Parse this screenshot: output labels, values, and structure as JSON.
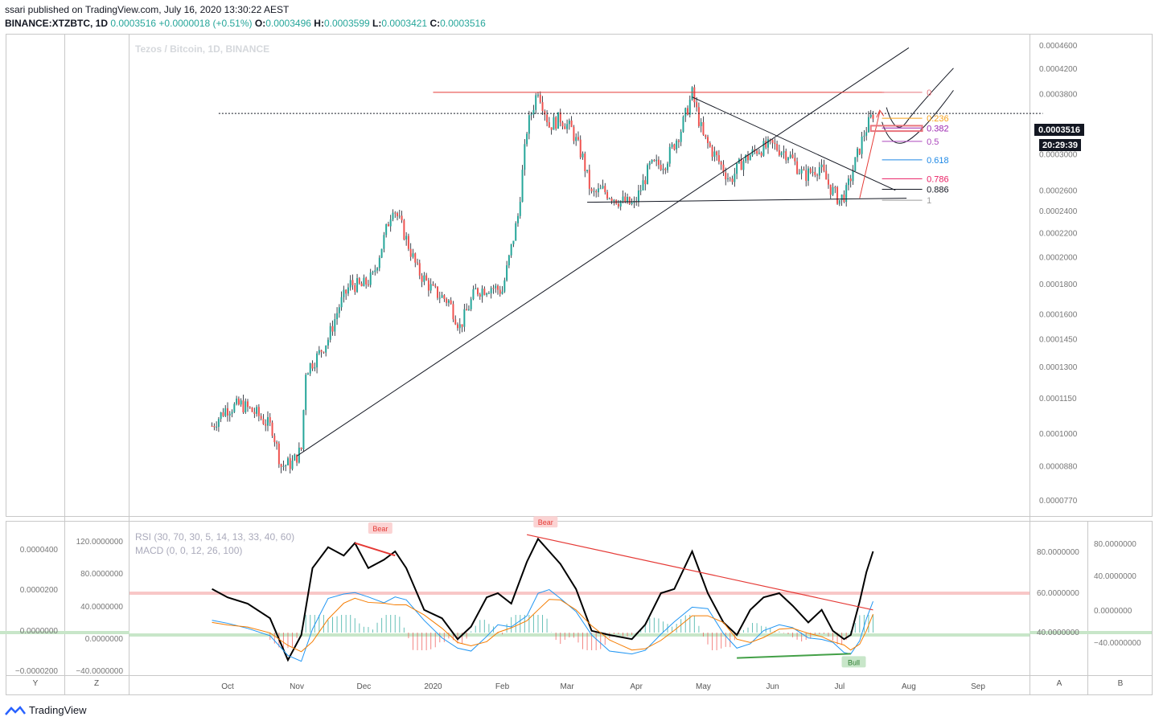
{
  "header": {
    "published": "ssari published on TradingView.com, July 16, 2020 13:30:22 AEST",
    "symbol": "BINANCE:XTZBTC, 1D",
    "last": "0.0003516",
    "change": "+0.0000018 (+0.51%)",
    "o_label": "O:",
    "o": "0.0003496",
    "h_label": "H:",
    "h": "0.0003599",
    "l_label": "L:",
    "l": "0.0003421",
    "c_label": "C:",
    "c": "0.0003516"
  },
  "watermark": "Tezos / Bitcoin, 1D, BINANCE",
  "price_axis": {
    "labels": [
      "0.0004600",
      "0.0004200",
      "0.0003800",
      "0.0003000",
      "0.0002600",
      "0.0002400",
      "0.0002200",
      "0.0002000",
      "0.0001800",
      "0.0001600",
      "0.0001450",
      "0.0001300",
      "0.0001150",
      "0.0001000",
      "0.0000880",
      "0.0000770"
    ],
    "last_price": "0.0003516",
    "countdown": "20:29:39"
  },
  "time_axis": [
    "Oct",
    "Nov",
    "Dec",
    "2020",
    "Feb",
    "Mar",
    "Apr",
    "May",
    "Jun",
    "Jul",
    "Aug",
    "Sep"
  ],
  "fib_levels": [
    {
      "label": "0",
      "color": "#e8747c"
    },
    {
      "label": "0.236",
      "color": "#f7a21b"
    },
    {
      "label": "0.382",
      "color": "#9c27b0"
    },
    {
      "label": "0.5",
      "color": "#ab47bc"
    },
    {
      "label": "0.618",
      "color": "#1e88e5"
    },
    {
      "label": "0.786",
      "color": "#e91e63"
    },
    {
      "label": "0.886",
      "color": "#131722"
    },
    {
      "label": "1",
      "color": "#9e9e9e"
    }
  ],
  "indicators": {
    "rsi_label": "RSI (30, 70, 30, 5, 14, 13, 33, 40, 60)",
    "macd_label": "MACD (0, 0, 12, 26, 100)",
    "left_axis": [
      "0.0000400",
      "0.0000200",
      "0.0000000",
      "−0.0000200"
    ],
    "mid_axis": [
      "120.0000000",
      "80.0000000",
      "40.0000000",
      "0.0000000",
      "−40.0000000"
    ],
    "right_axis": [
      "80.0000000",
      "60.0000000",
      "40.0000000"
    ],
    "far_axis": [
      "80.0000000",
      "40.0000000",
      "0.0000000",
      "−40.0000000"
    ],
    "bear_label": "Bear",
    "bull_label": "Bull"
  },
  "axis_buttons": {
    "y": "Y",
    "z": "Z",
    "a": "A",
    "b": "B"
  },
  "footer": {
    "brand": "TradingView"
  },
  "colors": {
    "up": "#26a69a",
    "down": "#ef5350",
    "fib_red": "#e53935",
    "rsi_line": "#000000",
    "macd_blue": "#2196f3",
    "signal_orange": "#f57c00"
  },
  "chart_data": [
    {
      "type": "candlestick",
      "title": "Tezos / Bitcoin, 1D, BINANCE",
      "series_name": "BINANCE:XTZBTC",
      "scale": "log",
      "ylim": [
        7.2e-05,
        0.00048
      ],
      "x_labels": [
        "Oct",
        "Nov",
        "Dec",
        "2020",
        "Feb",
        "Mar",
        "Apr",
        "May",
        "Jun",
        "Jul",
        "Aug",
        "Sep"
      ],
      "close_path": [
        [
          "2019-09-24",
          0.000103
        ],
        [
          "2019-09-30",
          0.00011
        ],
        [
          "2019-10-07",
          0.000112
        ],
        [
          "2019-10-14",
          0.000108
        ],
        [
          "2019-10-21",
          0.000102
        ],
        [
          "2019-10-25",
          8.8e-05
        ],
        [
          "2019-10-30",
          8.9e-05
        ],
        [
          "2019-11-03",
          9.4e-05
        ],
        [
          "2019-11-05",
          0.000128
        ],
        [
          "2019-11-10",
          0.000135
        ],
        [
          "2019-11-15",
          0.000145
        ],
        [
          "2019-11-20",
          0.000165
        ],
        [
          "2019-11-25",
          0.00018
        ],
        [
          "2019-11-30",
          0.000178
        ],
        [
          "2019-12-05",
          0.000185
        ],
        [
          "2019-12-10",
          0.000215
        ],
        [
          "2019-12-14",
          0.000245
        ],
        [
          "2019-12-18",
          0.000225
        ],
        [
          "2019-12-25",
          0.00019
        ],
        [
          "2020-01-01",
          0.000175
        ],
        [
          "2020-01-08",
          0.000168
        ],
        [
          "2020-01-13",
          0.000152
        ],
        [
          "2020-01-20",
          0.000175
        ],
        [
          "2020-01-27",
          0.000178
        ],
        [
          "2020-02-01",
          0.000175
        ],
        [
          "2020-02-08",
          0.000235
        ],
        [
          "2020-02-12",
          0.00033
        ],
        [
          "2020-02-17",
          0.000388
        ],
        [
          "2020-02-22",
          0.000335
        ],
        [
          "2020-02-27",
          0.000345
        ],
        [
          "2020-03-03",
          0.00033
        ],
        [
          "2020-03-08",
          0.000295
        ],
        [
          "2020-03-12",
          0.000255
        ],
        [
          "2020-03-17",
          0.00026
        ],
        [
          "2020-03-24",
          0.00025
        ],
        [
          "2020-03-31",
          0.000245
        ],
        [
          "2020-04-07",
          0.000285
        ],
        [
          "2020-04-14",
          0.00029
        ],
        [
          "2020-04-21",
          0.00033
        ],
        [
          "2020-04-26",
          0.00038
        ],
        [
          "2020-05-01",
          0.00032
        ],
        [
          "2020-05-07",
          0.000295
        ],
        [
          "2020-05-13",
          0.00027
        ],
        [
          "2020-05-18",
          0.00029
        ],
        [
          "2020-05-25",
          0.000305
        ],
        [
          "2020-06-01",
          0.00031
        ],
        [
          "2020-06-08",
          0.0003
        ],
        [
          "2020-06-15",
          0.000275
        ],
        [
          "2020-06-22",
          0.000285
        ],
        [
          "2020-06-27",
          0.000262
        ],
        [
          "2020-07-01",
          0.00025
        ],
        [
          "2020-07-04",
          0.000258
        ],
        [
          "2020-07-08",
          0.00029
        ],
        [
          "2020-07-12",
          0.000325
        ],
        [
          "2020-07-16",
          0.0003516
        ]
      ]
    },
    {
      "type": "line",
      "title": "RSI (30, 70, 30, 5, 14, 13, 33, 40, 60)",
      "ylim": [
        20,
        100
      ],
      "bands": [
        40,
        60
      ],
      "rsi": [
        [
          "2019-09-24",
          62
        ],
        [
          "2019-10-01",
          58
        ],
        [
          "2019-10-10",
          55
        ],
        [
          "2019-10-20",
          48
        ],
        [
          "2019-10-28",
          28
        ],
        [
          "2019-11-03",
          40
        ],
        [
          "2019-11-08",
          72
        ],
        [
          "2019-11-15",
          82
        ],
        [
          "2019-11-22",
          78
        ],
        [
          "2019-11-27",
          84
        ],
        [
          "2019-12-03",
          72
        ],
        [
          "2019-12-10",
          76
        ],
        [
          "2019-12-15",
          80
        ],
        [
          "2019-12-20",
          72
        ],
        [
          "2019-12-28",
          52
        ],
        [
          "2020-01-05",
          48
        ],
        [
          "2020-01-12",
          38
        ],
        [
          "2020-01-18",
          44
        ],
        [
          "2020-01-25",
          58
        ],
        [
          "2020-01-30",
          60
        ],
        [
          "2020-02-05",
          55
        ],
        [
          "2020-02-12",
          75
        ],
        [
          "2020-02-17",
          86
        ],
        [
          "2020-02-22",
          80
        ],
        [
          "2020-02-27",
          74
        ],
        [
          "2020-03-05",
          62
        ],
        [
          "2020-03-12",
          42
        ],
        [
          "2020-03-20",
          40
        ],
        [
          "2020-03-30",
          38
        ],
        [
          "2020-04-05",
          45
        ],
        [
          "2020-04-12",
          60
        ],
        [
          "2020-04-18",
          62
        ],
        [
          "2020-04-26",
          80
        ],
        [
          "2020-05-03",
          60
        ],
        [
          "2020-05-10",
          46
        ],
        [
          "2020-05-16",
          40
        ],
        [
          "2020-05-22",
          52
        ],
        [
          "2020-05-28",
          58
        ],
        [
          "2020-06-04",
          60
        ],
        [
          "2020-06-10",
          54
        ],
        [
          "2020-06-17",
          46
        ],
        [
          "2020-06-23",
          52
        ],
        [
          "2020-06-28",
          42
        ],
        [
          "2020-07-03",
          38
        ],
        [
          "2020-07-06",
          40
        ],
        [
          "2020-07-10",
          56
        ],
        [
          "2020-07-13",
          70
        ],
        [
          "2020-07-16",
          80
        ]
      ]
    }
  ]
}
